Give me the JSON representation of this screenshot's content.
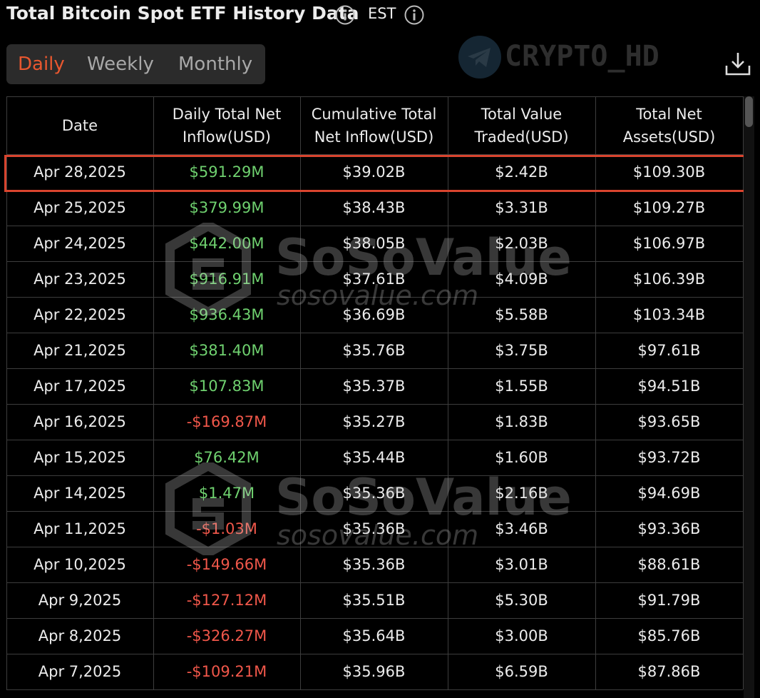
{
  "header": {
    "title": "Total Bitcoin Spot ETF History Data",
    "timezone": "EST"
  },
  "tabs": {
    "items": [
      "Daily",
      "Weekly",
      "Monthly"
    ],
    "active": 0
  },
  "watermarks": {
    "channel": "CRYPTO_HD",
    "brand": "SoSoValue",
    "url": "sosovalue.com"
  },
  "table": {
    "header": [
      [
        "Date"
      ],
      [
        "Daily Total Net",
        "Inflow(USD)"
      ],
      [
        "Cumulative Total",
        "Net Inflow(USD)"
      ],
      [
        "Total Value",
        "Traded(USD)"
      ],
      [
        "Total Net",
        "Assets(USD)"
      ]
    ],
    "highlighted_row": 0,
    "rows": [
      [
        "Apr 28,2025",
        "$591.29M",
        "$39.02B",
        "$2.42B",
        "$109.30B"
      ],
      [
        "Apr 25,2025",
        "$379.99M",
        "$38.43B",
        "$3.31B",
        "$109.27B"
      ],
      [
        "Apr 24,2025",
        "$442.00M",
        "$38.05B",
        "$2.03B",
        "$106.97B"
      ],
      [
        "Apr 23,2025",
        "$916.91M",
        "$37.61B",
        "$4.09B",
        "$106.39B"
      ],
      [
        "Apr 22,2025",
        "$936.43M",
        "$36.69B",
        "$5.58B",
        "$103.34B"
      ],
      [
        "Apr 21,2025",
        "$381.40M",
        "$35.76B",
        "$3.75B",
        "$97.61B"
      ],
      [
        "Apr 17,2025",
        "$107.83M",
        "$35.37B",
        "$1.55B",
        "$94.51B"
      ],
      [
        "Apr 16,2025",
        "-$169.87M",
        "$35.27B",
        "$1.83B",
        "$93.65B"
      ],
      [
        "Apr 15,2025",
        "$76.42M",
        "$35.44B",
        "$1.60B",
        "$93.72B"
      ],
      [
        "Apr 14,2025",
        "$1.47M",
        "$35.36B",
        "$2.16B",
        "$94.69B"
      ],
      [
        "Apr 11,2025",
        "-$1.03M",
        "$35.36B",
        "$3.46B",
        "$93.36B"
      ],
      [
        "Apr 10,2025",
        "-$149.66M",
        "$35.36B",
        "$3.01B",
        "$88.61B"
      ],
      [
        "Apr 9,2025",
        "-$127.12M",
        "$35.51B",
        "$5.30B",
        "$91.79B"
      ],
      [
        "Apr 8,2025",
        "-$326.27M",
        "$35.64B",
        "$3.00B",
        "$85.76B"
      ],
      [
        "Apr 7,2025",
        "-$109.21M",
        "$35.96B",
        "$6.59B",
        "$87.86B"
      ]
    ]
  }
}
